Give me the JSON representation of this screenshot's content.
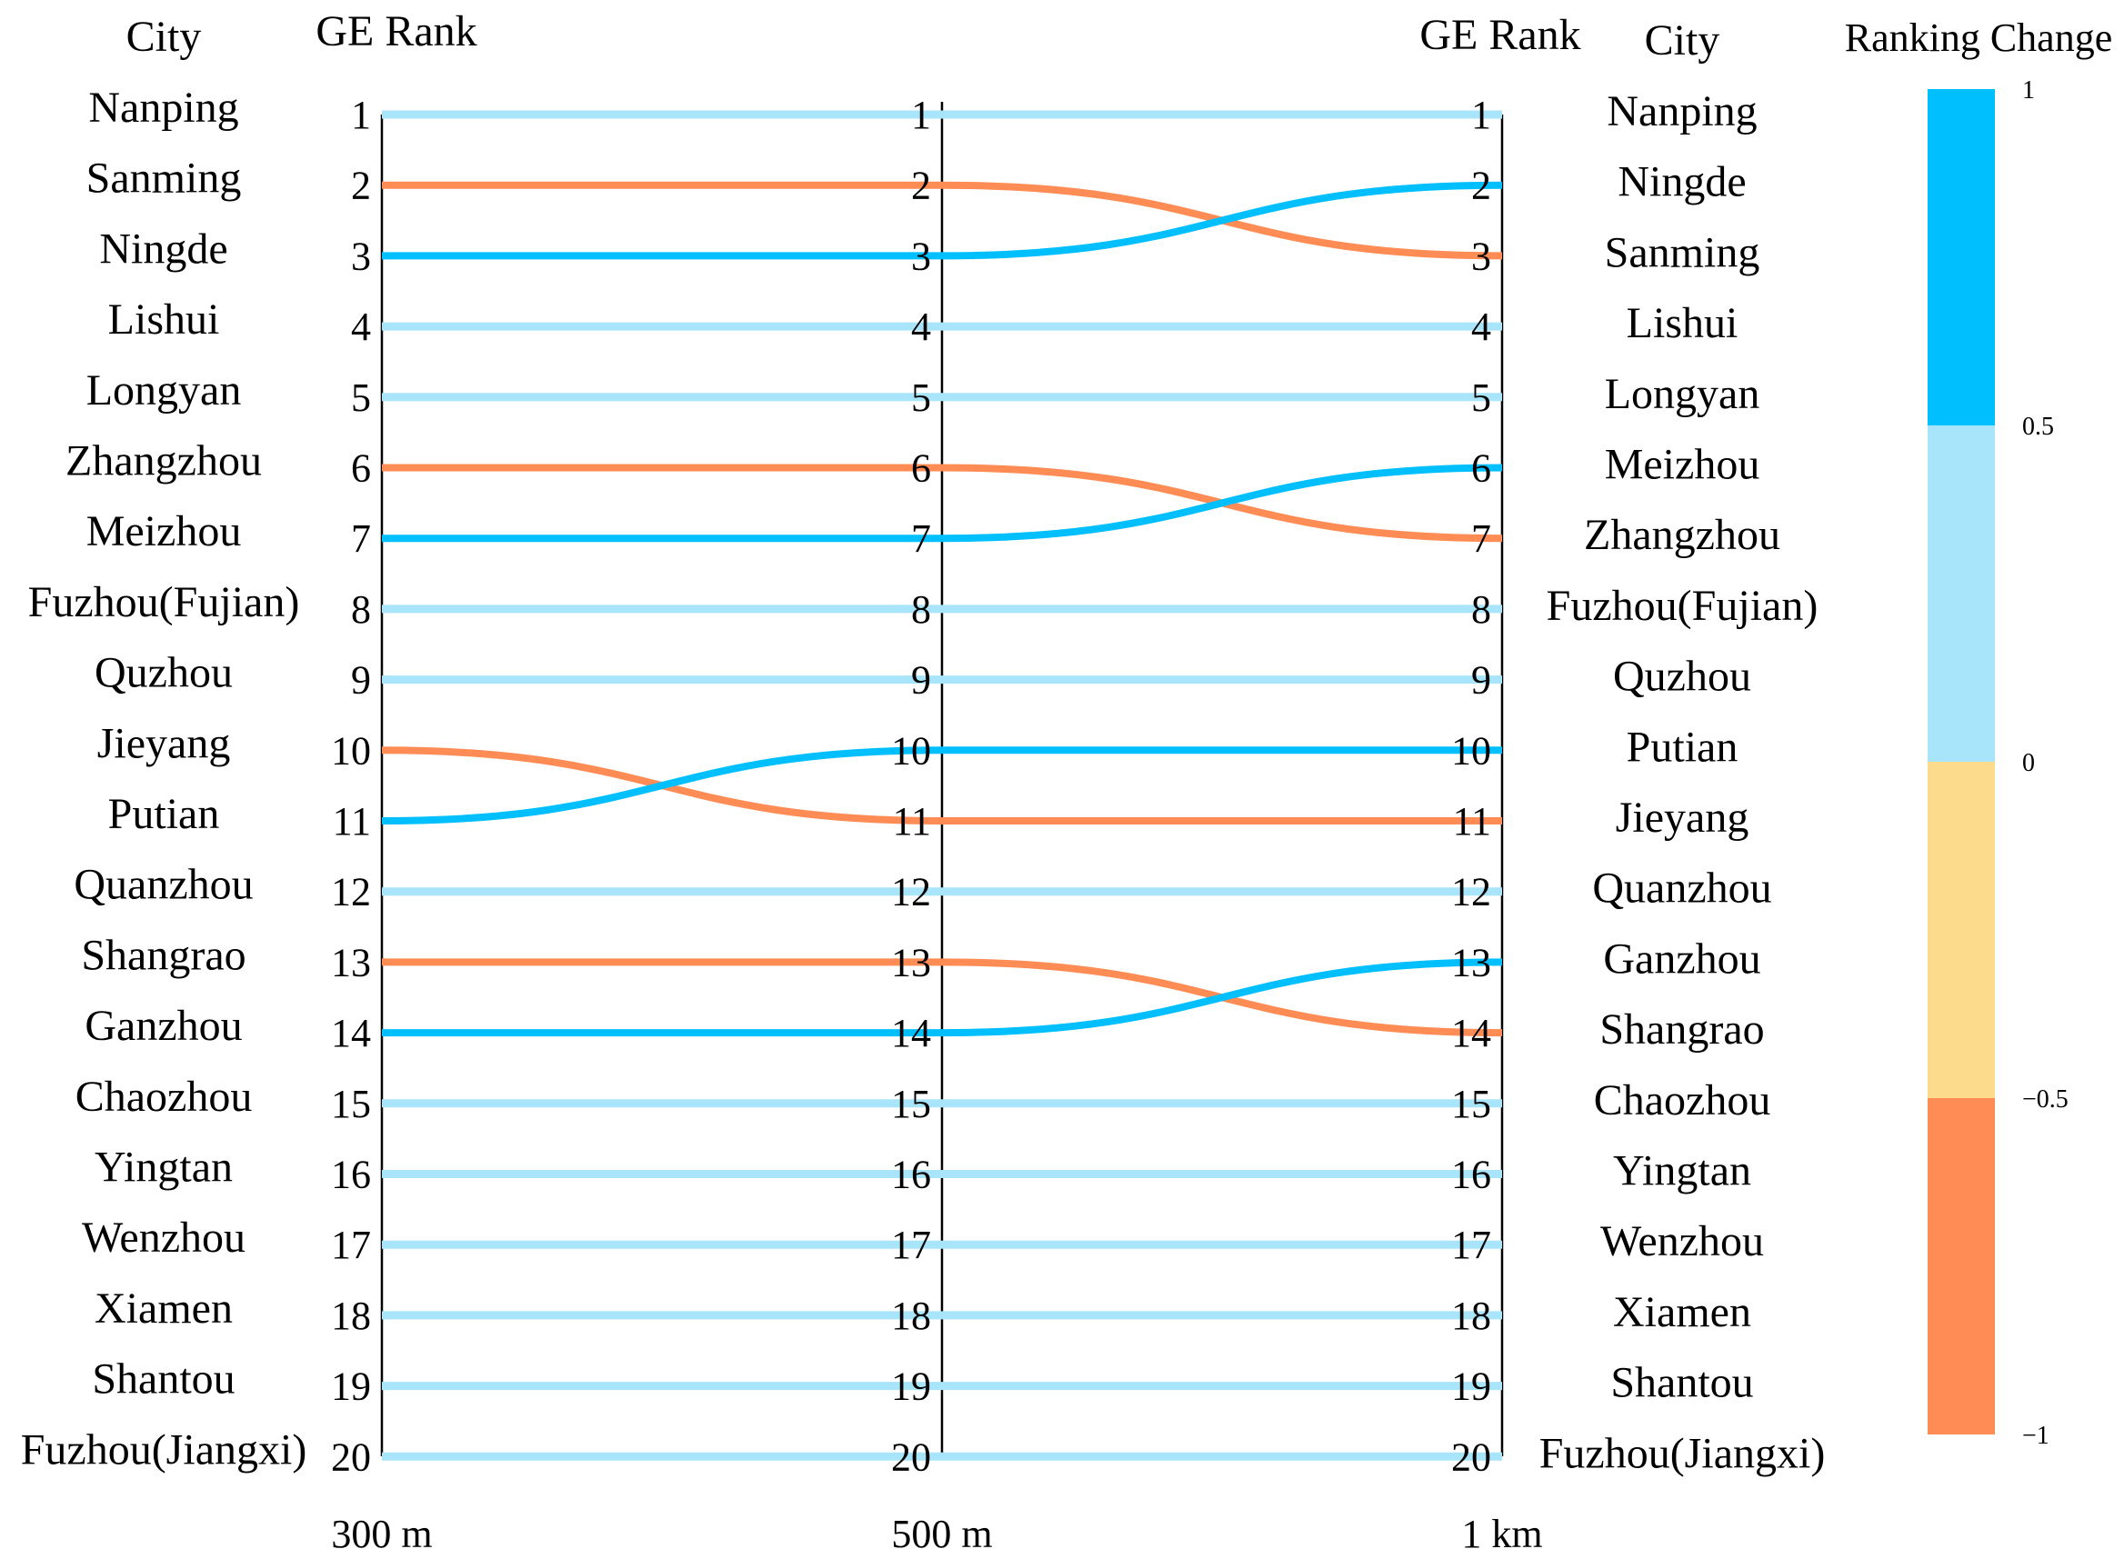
{
  "headers": {
    "left_city": "City",
    "left_rank": "GE Rank",
    "right_rank": "GE Rank",
    "right_city": "City",
    "legend_title": "Ranking Change"
  },
  "chart_data": {
    "type": "slope",
    "x": [
      "300 m",
      "500 m",
      "1 km"
    ],
    "rank_ticks": [
      1,
      2,
      3,
      4,
      5,
      6,
      7,
      8,
      9,
      10,
      11,
      12,
      13,
      14,
      15,
      16,
      17,
      18,
      19,
      20
    ],
    "left_cities": [
      "Nanping",
      "Sanming",
      "Ningde",
      "Lishui",
      "Longyan",
      "Zhangzhou",
      "Meizhou",
      "Fuzhou(Fujian)",
      "Quzhou",
      "Jieyang",
      "Putian",
      "Quanzhou",
      "Shangrao",
      "Ganzhou",
      "Chaozhou",
      "Yingtan",
      "Wenzhou",
      "Xiamen",
      "Shantou",
      "Fuzhou(Jiangxi)"
    ],
    "right_cities": [
      "Nanping",
      "Ningde",
      "Sanming",
      "Lishui",
      "Longyan",
      "Meizhou",
      "Zhangzhou",
      "Fuzhou(Fujian)",
      "Quzhou",
      "Putian",
      "Jieyang",
      "Quanzhou",
      "Ganzhou",
      "Shangrao",
      "Chaozhou",
      "Yingtan",
      "Wenzhou",
      "Xiamen",
      "Shantou",
      "Fuzhou(Jiangxi)"
    ],
    "series": [
      {
        "name": "Nanping",
        "ranks": [
          1,
          1,
          1
        ],
        "change": 0
      },
      {
        "name": "Sanming",
        "ranks": [
          2,
          2,
          3
        ],
        "change": -1
      },
      {
        "name": "Ningde",
        "ranks": [
          3,
          3,
          2
        ],
        "change": 1
      },
      {
        "name": "Lishui",
        "ranks": [
          4,
          4,
          4
        ],
        "change": 0
      },
      {
        "name": "Longyan",
        "ranks": [
          5,
          5,
          5
        ],
        "change": 0
      },
      {
        "name": "Zhangzhou",
        "ranks": [
          6,
          6,
          7
        ],
        "change": -1
      },
      {
        "name": "Meizhou",
        "ranks": [
          7,
          7,
          6
        ],
        "change": 1
      },
      {
        "name": "Fuzhou(Fujian)",
        "ranks": [
          8,
          8,
          8
        ],
        "change": 0
      },
      {
        "name": "Quzhou",
        "ranks": [
          9,
          9,
          9
        ],
        "change": 0
      },
      {
        "name": "Jieyang",
        "ranks": [
          10,
          11,
          11
        ],
        "change": -1
      },
      {
        "name": "Putian",
        "ranks": [
          11,
          10,
          10
        ],
        "change": 1
      },
      {
        "name": "Quanzhou",
        "ranks": [
          12,
          12,
          12
        ],
        "change": 0
      },
      {
        "name": "Shangrao",
        "ranks": [
          13,
          13,
          14
        ],
        "change": -1
      },
      {
        "name": "Ganzhou",
        "ranks": [
          14,
          14,
          13
        ],
        "change": 1
      },
      {
        "name": "Chaozhou",
        "ranks": [
          15,
          15,
          15
        ],
        "change": 0
      },
      {
        "name": "Yingtan",
        "ranks": [
          16,
          16,
          16
        ],
        "change": 0
      },
      {
        "name": "Wenzhou",
        "ranks": [
          17,
          17,
          17
        ],
        "change": 0
      },
      {
        "name": "Xiamen",
        "ranks": [
          18,
          18,
          18
        ],
        "change": 0
      },
      {
        "name": "Shantou",
        "ranks": [
          19,
          19,
          19
        ],
        "change": 0
      },
      {
        "name": "Fuzhou(Jiangxi)",
        "ranks": [
          20,
          20,
          20
        ],
        "change": 0
      }
    ],
    "colors": {
      "increase": "#00BFFF",
      "no_change": "#A8E4FA",
      "decrease": "#FF8C55",
      "legend_bins": [
        "#00BFFF",
        "#A8E4FA",
        "#FCDC8C",
        "#FF8C55"
      ]
    },
    "legend_ticks": [
      "1",
      "0.5",
      "0",
      "−0.5",
      "−1"
    ]
  }
}
